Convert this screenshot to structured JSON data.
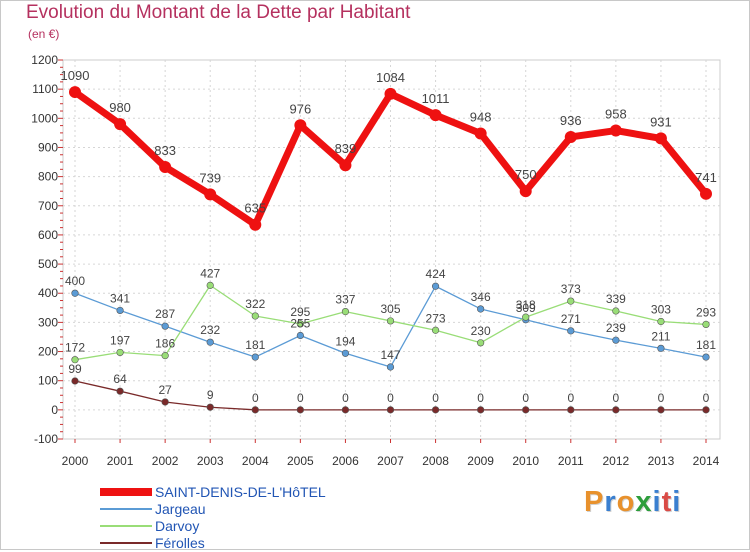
{
  "title": "Evolution du Montant de la Dette par Habitant",
  "unit_label": "(en €)",
  "logo_text": "Proxiti",
  "logo_colors": [
    "#e8912c",
    "#3a7fd0",
    "#e8912c",
    "#2d9e3c",
    "#3a7fd0",
    "#d94b46",
    "#3a7fd0"
  ],
  "chart_data": {
    "type": "line",
    "x": [
      "2000",
      "2001",
      "2002",
      "2003",
      "2004",
      "2005",
      "2006",
      "2007",
      "2008",
      "2009",
      "2010",
      "2011",
      "2012",
      "2013",
      "2014"
    ],
    "ylim": [
      -100,
      1200
    ],
    "yticks": [
      -100,
      0,
      100,
      200,
      300,
      400,
      500,
      600,
      700,
      800,
      900,
      1000,
      1100,
      1200
    ],
    "grid": true,
    "legend_position": "bottom-left",
    "series": [
      {
        "name": "SAINT-DENIS-DE-L'HôTEL",
        "color": "#ee1111",
        "values": [
          1090,
          980,
          833,
          739,
          635,
          976,
          839,
          1084,
          1011,
          948,
          750,
          936,
          958,
          931,
          741
        ],
        "labels": [
          "1090",
          "980",
          "833",
          "739",
          "635",
          "976",
          "839",
          "1084",
          "1011",
          "948",
          "750",
          "936",
          "958",
          "931",
          "741"
        ]
      },
      {
        "name": "Jargeau",
        "color": "#5b9bd5",
        "values": [
          400,
          341,
          287,
          232,
          181,
          255,
          194,
          147,
          424,
          346,
          309,
          271,
          239,
          211,
          181
        ],
        "labels": [
          "400",
          "341",
          "287",
          "232",
          "181",
          "255",
          "194",
          "147",
          "424",
          "346",
          "309",
          "271",
          "239",
          "211",
          "181"
        ]
      },
      {
        "name": "Darvoy",
        "color": "#99dd77",
        "values": [
          172,
          197,
          186,
          427,
          322,
          295,
          337,
          305,
          273,
          230,
          318,
          373,
          339,
          303,
          293
        ],
        "labels": [
          "172",
          "197",
          "186",
          "427",
          "322",
          "295",
          "337",
          "305",
          "273",
          "230",
          "318",
          "373",
          "339",
          "303",
          "293"
        ]
      },
      {
        "name": "Férolles",
        "color": "#7a2a2a",
        "values": [
          99,
          64,
          27,
          9,
          0,
          0,
          0,
          0,
          0,
          0,
          0,
          0,
          0,
          0,
          0
        ],
        "labels": [
          "99",
          "64",
          "27",
          "9",
          "0",
          "0",
          "0",
          "0",
          "0",
          "0",
          "0",
          "0",
          "0",
          "0",
          "0"
        ]
      }
    ]
  }
}
